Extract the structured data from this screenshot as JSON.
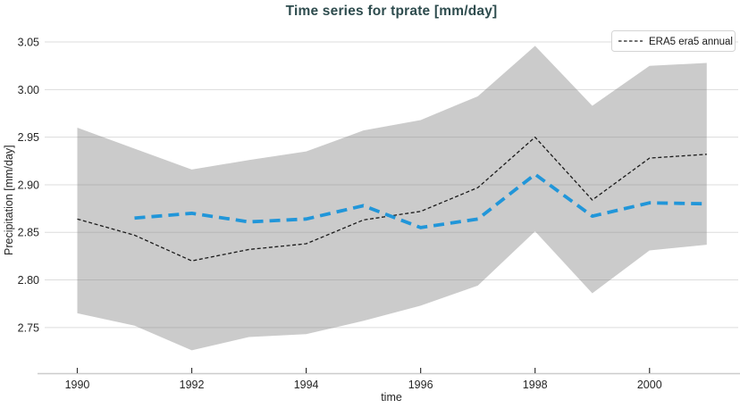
{
  "title": "Time series for tprate [mm/day]",
  "axes": {
    "xlabel": "time",
    "ylabel": "Precipitation [mm/day]"
  },
  "legend": {
    "position": "upper-right",
    "items": [
      {
        "label": "ERA5 era5 annual",
        "marker": "dashed-line",
        "color": "#1a1a1a"
      }
    ]
  },
  "colors": {
    "title": "#2e4c4e",
    "band": "#cbcbcb",
    "era5_line": "#1a1a1a",
    "blue_line": "#2196d9",
    "grid": "rgba(128,128,128,0.28)",
    "spine": "#cccccc",
    "tick_mark": "#333333",
    "tick_text": "#262626",
    "legend_border": "#d4d4d4"
  },
  "chart_data": {
    "type": "line",
    "title": "Time series for tprate [mm/day]",
    "xlabel": "time",
    "ylabel": "Precipitation [mm/day]",
    "grid": true,
    "legend_position": "upper-right",
    "xlim": [
      1989.43,
      2001.55
    ],
    "ylim": [
      2.702,
      3.066
    ],
    "x_tick_values": [
      1990,
      1992,
      1994,
      1996,
      1998,
      2000
    ],
    "x_tick_labels": [
      "1990",
      "1992",
      "1994",
      "1996",
      "1998",
      "2000"
    ],
    "y_tick_values": [
      2.75,
      2.8,
      2.85,
      2.9,
      2.95,
      3.0,
      3.05
    ],
    "y_tick_labels": [
      "2.75",
      "2.80",
      "2.85",
      "2.90",
      "2.95",
      "3.00",
      "3.05"
    ],
    "series": [
      {
        "name": "ERA5 era5 annual",
        "style": "dashed-thin",
        "color": "#1a1a1a",
        "x": [
          1990,
          1991,
          1992,
          1993,
          1994,
          1995,
          1996,
          1997,
          1998,
          1999,
          2000,
          2001
        ],
        "values": [
          2.864,
          2.847,
          2.82,
          2.832,
          2.838,
          2.863,
          2.872,
          2.897,
          2.95,
          2.884,
          2.928,
          2.932
        ]
      },
      {
        "name": "blue-dashed-line-unlabeled",
        "style": "dashed-thick",
        "color": "#2196d9",
        "x": [
          1991,
          1992,
          1993,
          1994,
          1995,
          1996,
          1997,
          1998,
          1999,
          2000,
          2001
        ],
        "values": [
          2.865,
          2.87,
          2.861,
          2.864,
          2.878,
          2.855,
          2.864,
          2.911,
          2.867,
          2.881,
          2.88
        ]
      }
    ],
    "band": {
      "name": "uncertainty-band",
      "color": "#cbcbcb",
      "x": [
        1990,
        1991,
        1992,
        1993,
        1994,
        1995,
        1996,
        1997,
        1998,
        1999,
        2000,
        2001
      ],
      "upper": [
        2.96,
        2.938,
        2.916,
        2.926,
        2.935,
        2.957,
        2.968,
        2.993,
        3.046,
        2.983,
        3.025,
        3.028
      ],
      "lower": [
        2.765,
        2.752,
        2.726,
        2.74,
        2.743,
        2.757,
        2.773,
        2.794,
        2.851,
        2.786,
        2.831,
        2.837
      ]
    }
  }
}
